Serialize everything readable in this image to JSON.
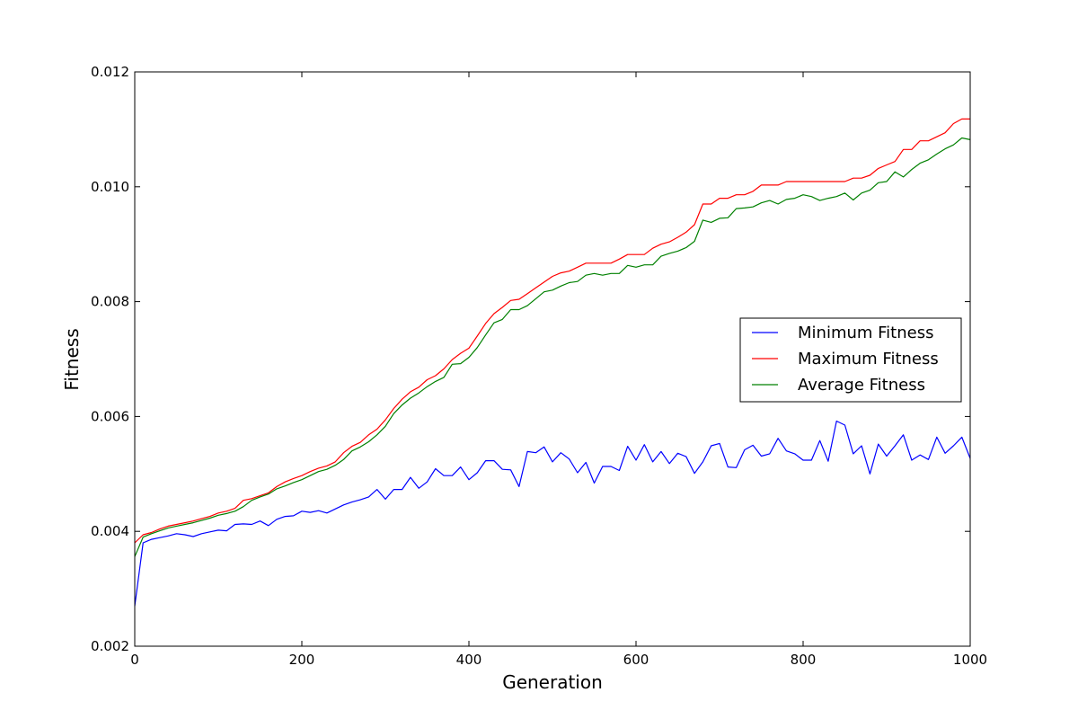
{
  "chart_data": {
    "type": "line",
    "title": "",
    "xlabel": "Generation",
    "ylabel": "Fitness",
    "xlim": [
      0,
      1000
    ],
    "ylim": [
      0.002,
      0.012
    ],
    "xticks": [
      0,
      200,
      400,
      600,
      800,
      1000
    ],
    "xtick_labels": [
      "0",
      "200",
      "400",
      "600",
      "800",
      "1000"
    ],
    "yticks": [
      0.002,
      0.004,
      0.006,
      0.008,
      0.01,
      0.012
    ],
    "ytick_labels": [
      "0.002",
      "0.004",
      "0.006",
      "0.008",
      "0.010",
      "0.012"
    ],
    "grid": false,
    "legend_position": "center-right",
    "x": [
      0,
      10,
      20,
      30,
      40,
      50,
      60,
      70,
      80,
      90,
      100,
      110,
      120,
      130,
      140,
      150,
      160,
      170,
      180,
      190,
      200,
      210,
      220,
      230,
      240,
      250,
      260,
      270,
      280,
      290,
      300,
      310,
      320,
      330,
      340,
      350,
      360,
      370,
      380,
      390,
      400,
      410,
      420,
      430,
      440,
      450,
      460,
      470,
      480,
      490,
      500,
      510,
      520,
      530,
      540,
      550,
      560,
      570,
      580,
      590,
      600,
      610,
      620,
      630,
      640,
      650,
      660,
      670,
      680,
      690,
      700,
      710,
      720,
      730,
      740,
      750,
      760,
      770,
      780,
      790,
      800,
      810,
      820,
      830,
      840,
      850,
      860,
      870,
      880,
      890,
      900,
      910,
      920,
      930,
      940,
      950,
      960,
      970,
      980,
      990,
      1000
    ],
    "series": [
      {
        "name": "Minimum Fitness",
        "color": "#0000ff",
        "values": [
          0.0027,
          0.0038,
          0.00386,
          0.00389,
          0.00392,
          0.00396,
          0.00394,
          0.00391,
          0.00396,
          0.00399,
          0.00402,
          0.00401,
          0.00412,
          0.00413,
          0.00412,
          0.00418,
          0.0041,
          0.00421,
          0.00426,
          0.00427,
          0.00435,
          0.00433,
          0.00436,
          0.00432,
          0.00439,
          0.00446,
          0.00451,
          0.00455,
          0.0046,
          0.00473,
          0.00456,
          0.00473,
          0.00473,
          0.00494,
          0.00475,
          0.00486,
          0.00509,
          0.00497,
          0.00497,
          0.00512,
          0.0049,
          0.00502,
          0.00523,
          0.00523,
          0.00508,
          0.00507,
          0.00478,
          0.00539,
          0.00537,
          0.00547,
          0.00521,
          0.00537,
          0.00526,
          0.00502,
          0.0052,
          0.00484,
          0.00513,
          0.00513,
          0.00506,
          0.00548,
          0.00524,
          0.00551,
          0.00521,
          0.00539,
          0.00518,
          0.00536,
          0.0053,
          0.00501,
          0.00521,
          0.00549,
          0.00553,
          0.00512,
          0.00511,
          0.00542,
          0.0055,
          0.00531,
          0.00535,
          0.00562,
          0.0054,
          0.00535,
          0.00524,
          0.00524,
          0.00558,
          0.00522,
          0.00592,
          0.00585,
          0.00535,
          0.00549,
          0.005,
          0.00552,
          0.00531,
          0.00549,
          0.00568,
          0.00524,
          0.00533,
          0.00525,
          0.00564,
          0.00536,
          0.00549,
          0.00564,
          0.00527
        ]
      },
      {
        "name": "Maximum Fitness",
        "color": "#ff0000",
        "values": [
          0.0038,
          0.00394,
          0.00398,
          0.00404,
          0.00409,
          0.00412,
          0.00415,
          0.00418,
          0.00422,
          0.00426,
          0.00432,
          0.00435,
          0.0044,
          0.00454,
          0.00457,
          0.00462,
          0.00467,
          0.00478,
          0.00486,
          0.00492,
          0.00497,
          0.00504,
          0.0051,
          0.00514,
          0.00521,
          0.00537,
          0.00548,
          0.00555,
          0.00568,
          0.00578,
          0.00594,
          0.00614,
          0.0063,
          0.00643,
          0.00651,
          0.00664,
          0.00671,
          0.00683,
          0.00699,
          0.0071,
          0.00719,
          0.0074,
          0.00762,
          0.00779,
          0.0079,
          0.00802,
          0.00804,
          0.00814,
          0.00824,
          0.00834,
          0.00844,
          0.0085,
          0.00853,
          0.0086,
          0.00867,
          0.00867,
          0.00867,
          0.00867,
          0.00874,
          0.00882,
          0.00882,
          0.00882,
          0.00893,
          0.009,
          0.00904,
          0.00912,
          0.00921,
          0.00934,
          0.0097,
          0.0097,
          0.0098,
          0.0098,
          0.00986,
          0.00986,
          0.00992,
          0.01003,
          0.01003,
          0.01003,
          0.01009,
          0.01009,
          0.01009,
          0.01009,
          0.01009,
          0.01009,
          0.01009,
          0.01009,
          0.01015,
          0.01015,
          0.0102,
          0.01032,
          0.01038,
          0.01044,
          0.01065,
          0.01065,
          0.0108,
          0.0108,
          0.01087,
          0.01094,
          0.0111,
          0.01118,
          0.01118
        ]
      },
      {
        "name": "Average Fitness",
        "color": "#008000",
        "values": [
          0.00356,
          0.0039,
          0.00396,
          0.00401,
          0.00406,
          0.00409,
          0.00412,
          0.00415,
          0.00419,
          0.00423,
          0.00428,
          0.00431,
          0.00435,
          0.00443,
          0.00454,
          0.0046,
          0.00465,
          0.00474,
          0.00479,
          0.00485,
          0.0049,
          0.00497,
          0.00504,
          0.00508,
          0.00515,
          0.00525,
          0.0054,
          0.00547,
          0.00556,
          0.00568,
          0.00583,
          0.00605,
          0.0062,
          0.00632,
          0.00641,
          0.00652,
          0.00661,
          0.00668,
          0.00691,
          0.00692,
          0.00703,
          0.0072,
          0.00742,
          0.00763,
          0.00769,
          0.00786,
          0.00786,
          0.00793,
          0.00805,
          0.00817,
          0.0082,
          0.00827,
          0.00833,
          0.00835,
          0.00846,
          0.00849,
          0.00846,
          0.00849,
          0.00849,
          0.00863,
          0.0086,
          0.00864,
          0.00864,
          0.00879,
          0.00884,
          0.00888,
          0.00894,
          0.00905,
          0.00942,
          0.00938,
          0.00945,
          0.00946,
          0.00962,
          0.00963,
          0.00965,
          0.00972,
          0.00976,
          0.0097,
          0.00978,
          0.0098,
          0.00986,
          0.00983,
          0.00976,
          0.0098,
          0.00983,
          0.00989,
          0.00977,
          0.00989,
          0.00994,
          0.01007,
          0.01009,
          0.01026,
          0.01017,
          0.0103,
          0.01041,
          0.01047,
          0.01057,
          0.01066,
          0.01073,
          0.01085,
          0.01082
        ]
      }
    ]
  }
}
